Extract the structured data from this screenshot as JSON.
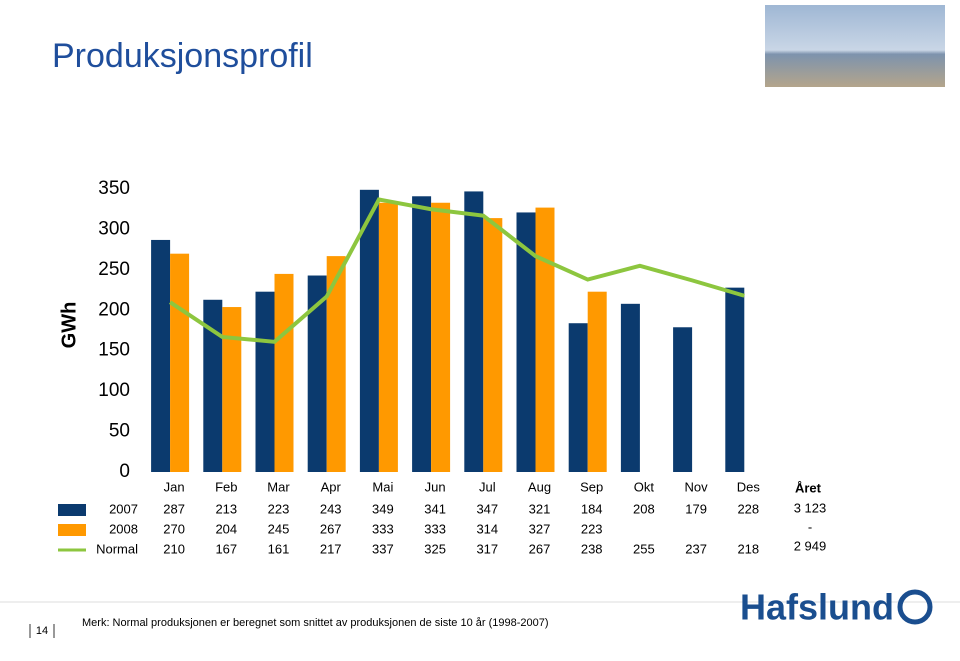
{
  "title": "Produksjonsprofil",
  "chart_data": {
    "type": "bar",
    "y_label": "GWh",
    "categories": [
      "Jan",
      "Feb",
      "Mar",
      "Apr",
      "Mai",
      "Jun",
      "Jul",
      "Aug",
      "Sep",
      "Okt",
      "Nov",
      "Des"
    ],
    "series": [
      {
        "name": "2007",
        "color": "#0b3a6e",
        "values": [
          287,
          213,
          223,
          243,
          349,
          341,
          347,
          321,
          184,
          208,
          179,
          228
        ]
      },
      {
        "name": "2008",
        "color": "#ff9900",
        "values": [
          270,
          204,
          245,
          267,
          333,
          333,
          314,
          327,
          223,
          null,
          null,
          null
        ]
      },
      {
        "name": "Normal",
        "color": "#8dc63f",
        "type": "line",
        "values": [
          210,
          167,
          161,
          217,
          337,
          325,
          317,
          267,
          238,
          255,
          237,
          218
        ]
      }
    ],
    "ylim": [
      0,
      350
    ],
    "yticks": [
      0,
      50,
      100,
      150,
      200,
      250,
      300,
      350
    ],
    "annual_header": "Året",
    "annual_values": [
      "3 123",
      "-",
      "2 949"
    ]
  },
  "note": "Merk: Normal produksjonen er beregnet som snittet av produksjonen de siste 10 år (1998-2007)",
  "page_number": "14",
  "logo": "Hafslund"
}
